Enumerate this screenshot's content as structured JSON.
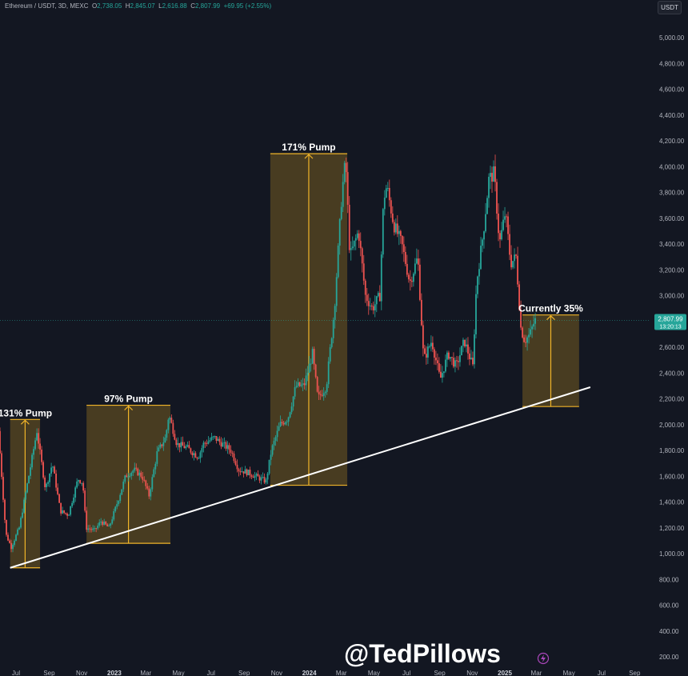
{
  "header": {
    "symbol": "Ethereum / USDT, 3D, MEXC",
    "open_label": "O",
    "open": "2,738.05",
    "high_label": "H",
    "high": "2,845.07",
    "low_label": "L",
    "low": "2,616.88",
    "close_label": "C",
    "close": "2,807.99",
    "change": "+69.95 (+2.55%)"
  },
  "unit_badge": "USDT",
  "watermark": "@TedPillows",
  "colors": {
    "background": "#131722",
    "up": "#26a69a",
    "down": "#ef5350",
    "box_fill": "#5b4a22",
    "box_edge": "#f0b429",
    "trendline": "#ffffff"
  },
  "chart_data": {
    "type": "candlestick",
    "title": "",
    "xlabel": "",
    "ylabel": "",
    "ylim": [
      150,
      5250
    ],
    "x_ticks": [
      "Jul",
      "Sep",
      "Nov",
      "2023",
      "Mar",
      "May",
      "Jul",
      "Sep",
      "Nov",
      "2024",
      "Mar",
      "May",
      "Jul",
      "Sep",
      "Nov",
      "2025",
      "Mar",
      "May",
      "Jul",
      "Sep"
    ],
    "y_ticks": [
      "5,000.00",
      "4,800.00",
      "4,600.00",
      "4,400.00",
      "4,200.00",
      "4,000.00",
      "3,800.00",
      "3,600.00",
      "3,400.00",
      "3,200.00",
      "3,000.00",
      "2,800.00",
      "2,600.00",
      "2,400.00",
      "2,200.00",
      "2,000.00",
      "1,800.00",
      "1,600.00",
      "1,400.00",
      "1,200.00",
      "1,000.00",
      "800.00",
      "600.00",
      "400.00",
      "200.00"
    ],
    "price_series": {
      "name": "",
      "points": [
        [
          "2022-06-01",
          1950
        ],
        [
          "2022-06-15",
          1150
        ],
        [
          "2022-06-25",
          1050
        ],
        [
          "2022-07-10",
          1200
        ],
        [
          "2022-07-30",
          1650
        ],
        [
          "2022-08-12",
          1950
        ],
        [
          "2022-08-28",
          1500
        ],
        [
          "2022-09-10",
          1700
        ],
        [
          "2022-09-25",
          1330
        ],
        [
          "2022-10-10",
          1300
        ],
        [
          "2022-10-28",
          1580
        ],
        [
          "2022-11-06",
          1550
        ],
        [
          "2022-11-12",
          1200
        ],
        [
          "2022-11-28",
          1180
        ],
        [
          "2022-12-10",
          1250
        ],
        [
          "2022-12-25",
          1200
        ],
        [
          "2023-01-10",
          1400
        ],
        [
          "2023-01-25",
          1600
        ],
        [
          "2023-02-10",
          1650
        ],
        [
          "2023-02-25",
          1600
        ],
        [
          "2023-03-10",
          1450
        ],
        [
          "2023-03-25",
          1780
        ],
        [
          "2023-04-10",
          1900
        ],
        [
          "2023-04-16",
          2080
        ],
        [
          "2023-05-01",
          1850
        ],
        [
          "2023-05-20",
          1820
        ],
        [
          "2023-06-10",
          1750
        ],
        [
          "2023-06-20",
          1850
        ],
        [
          "2023-07-10",
          1900
        ],
        [
          "2023-07-25",
          1850
        ],
        [
          "2023-08-10",
          1800
        ],
        [
          "2023-08-25",
          1650
        ],
        [
          "2023-09-10",
          1630
        ],
        [
          "2023-09-25",
          1600
        ],
        [
          "2023-10-15",
          1560
        ],
        [
          "2023-10-25",
          1800
        ],
        [
          "2023-11-10",
          2000
        ],
        [
          "2023-11-25",
          2050
        ],
        [
          "2023-12-10",
          2300
        ],
        [
          "2023-12-25",
          2300
        ],
        [
          "2024-01-10",
          2550
        ],
        [
          "2024-01-20",
          2200
        ],
        [
          "2024-02-05",
          2300
        ],
        [
          "2024-02-20",
          2900
        ],
        [
          "2024-03-05",
          3800
        ],
        [
          "2024-03-12",
          4050
        ],
        [
          "2024-03-20",
          3300
        ],
        [
          "2024-04-05",
          3500
        ],
        [
          "2024-04-18",
          3000
        ],
        [
          "2024-05-01",
          2900
        ],
        [
          "2024-05-15",
          3000
        ],
        [
          "2024-05-22",
          3750
        ],
        [
          "2024-05-28",
          3850
        ],
        [
          "2024-06-10",
          3550
        ],
        [
          "2024-06-25",
          3400
        ],
        [
          "2024-07-10",
          3100
        ],
        [
          "2024-07-25",
          3300
        ],
        [
          "2024-08-05",
          2500
        ],
        [
          "2024-08-20",
          2650
        ],
        [
          "2024-09-05",
          2350
        ],
        [
          "2024-09-20",
          2550
        ],
        [
          "2024-10-05",
          2450
        ],
        [
          "2024-10-20",
          2650
        ],
        [
          "2024-11-05",
          2450
        ],
        [
          "2024-11-12",
          3100
        ],
        [
          "2024-11-25",
          3500
        ],
        [
          "2024-12-05",
          3900
        ],
        [
          "2024-12-15",
          3950
        ],
        [
          "2024-12-25",
          3400
        ],
        [
          "2025-01-05",
          3650
        ],
        [
          "2025-01-15",
          3250
        ],
        [
          "2025-01-25",
          3300
        ],
        [
          "2025-02-03",
          2750
        ],
        [
          "2025-02-10",
          2650
        ],
        [
          "2025-02-20",
          2700
        ],
        [
          "2025-03-01",
          2807.99
        ]
      ]
    },
    "price_line": {
      "value": 2807.99,
      "label": "2,807.99",
      "countdown": "13:20:13"
    },
    "trendline": {
      "from": [
        "2022-06-20",
        890
      ],
      "to": [
        "2025-06-10",
        2290
      ]
    },
    "pump_boxes": [
      {
        "label": "131% Pump",
        "x0": "2022-06-20",
        "x1": "2022-08-15",
        "y0": 890,
        "y1": 2040
      },
      {
        "label": "97% Pump",
        "x0": "2022-11-10",
        "x1": "2023-04-16",
        "y0": 1080,
        "y1": 2150
      },
      {
        "label": "171% Pump",
        "x0": "2023-10-20",
        "x1": "2024-03-12",
        "y0": 1530,
        "y1": 4100
      },
      {
        "label": "Currently 35%",
        "x0": "2025-02-03",
        "x1": "2025-05-20",
        "y0": 2140,
        "y1": 2850
      }
    ]
  }
}
